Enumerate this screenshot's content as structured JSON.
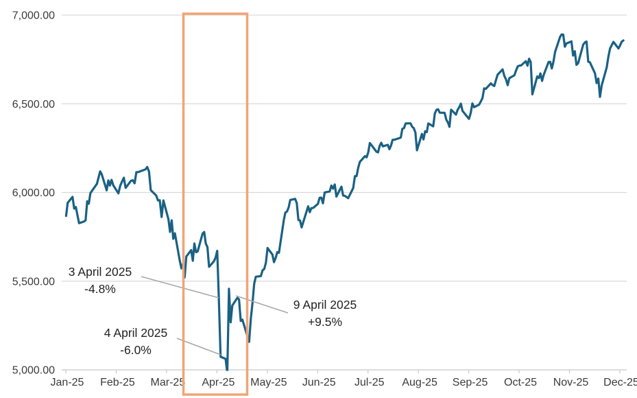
{
  "chart_data": {
    "type": "line",
    "xlabel": "",
    "ylabel": "",
    "ylim": [
      5000,
      7000
    ],
    "grid": "horizontal",
    "legend": "none",
    "y_ticks": [
      {
        "value": 7000,
        "label": "7,000.00"
      },
      {
        "value": 6500,
        "label": "6,500.00"
      },
      {
        "value": 6000,
        "label": "6,000.00"
      },
      {
        "value": 5500,
        "label": "5,500.00"
      },
      {
        "value": 5000,
        "label": "5,000.00"
      }
    ],
    "x_tick_labels": [
      "Jan-25",
      "Feb-25",
      "Mar-25",
      "Apr-25",
      "May-25",
      "Jun-25",
      "Jul-25",
      "Aug-25",
      "Sep-25",
      "Oct-25",
      "Nov-25",
      "Dec-25"
    ],
    "colors": {
      "line": "#1A6184",
      "highlight_box": "#F0A577",
      "gridline": "#D9D9D9",
      "axis": "#C8C8C8",
      "leader": "#A8A8A8",
      "axis_text": "#3A3A3A",
      "annotation_text": "#222222"
    },
    "annotations": [
      {
        "title": "3 April 2025",
        "value": "-4.8%",
        "anchor": [
          4,
          3
        ]
      },
      {
        "title": "4 April 2025",
        "value": "-6.0%",
        "anchor": [
          4,
          4
        ]
      },
      {
        "title": "9 April 2025",
        "value": "+9.5%",
        "anchor": [
          4,
          9
        ]
      }
    ],
    "highlight_box": {
      "color": "#F0A577"
    },
    "points": [
      [
        1,
        2,
        5868
      ],
      [
        1,
        3,
        5942
      ],
      [
        1,
        6,
        5975
      ],
      [
        1,
        7,
        5909
      ],
      [
        1,
        8,
        5918
      ],
      [
        1,
        10,
        5827
      ],
      [
        1,
        13,
        5836
      ],
      [
        1,
        14,
        5843
      ],
      [
        1,
        15,
        5950
      ],
      [
        1,
        16,
        5937
      ],
      [
        1,
        17,
        5997
      ],
      [
        1,
        21,
        6049
      ],
      [
        1,
        22,
        6086
      ],
      [
        1,
        23,
        6119
      ],
      [
        1,
        24,
        6101
      ],
      [
        1,
        27,
        6012
      ],
      [
        1,
        28,
        6068
      ],
      [
        1,
        29,
        6039
      ],
      [
        1,
        30,
        6071
      ],
      [
        1,
        31,
        6041
      ],
      [
        2,
        3,
        5995
      ],
      [
        2,
        4,
        6038
      ],
      [
        2,
        5,
        6061
      ],
      [
        2,
        6,
        6083
      ],
      [
        2,
        7,
        6026
      ],
      [
        2,
        10,
        6066
      ],
      [
        2,
        11,
        6069
      ],
      [
        2,
        12,
        6052
      ],
      [
        2,
        13,
        6115
      ],
      [
        2,
        14,
        6115
      ],
      [
        2,
        18,
        6130
      ],
      [
        2,
        19,
        6144
      ],
      [
        2,
        20,
        6118
      ],
      [
        2,
        21,
        6013
      ],
      [
        2,
        24,
        5983
      ],
      [
        2,
        25,
        5955
      ],
      [
        2,
        26,
        5956
      ],
      [
        2,
        27,
        5862
      ],
      [
        2,
        28,
        5955
      ],
      [
        3,
        3,
        5850
      ],
      [
        3,
        4,
        5778
      ],
      [
        3,
        5,
        5843
      ],
      [
        3,
        6,
        5739
      ],
      [
        3,
        7,
        5770
      ],
      [
        3,
        10,
        5615
      ],
      [
        3,
        11,
        5572
      ],
      [
        3,
        12,
        5599
      ],
      [
        3,
        13,
        5521
      ],
      [
        3,
        14,
        5639
      ],
      [
        3,
        17,
        5675
      ],
      [
        3,
        18,
        5615
      ],
      [
        3,
        19,
        5712
      ],
      [
        3,
        20,
        5663
      ],
      [
        3,
        21,
        5668
      ],
      [
        3,
        24,
        5768
      ],
      [
        3,
        25,
        5777
      ],
      [
        3,
        26,
        5712
      ],
      [
        3,
        27,
        5693
      ],
      [
        3,
        28,
        5581
      ],
      [
        3,
        31,
        5612
      ],
      [
        4,
        1,
        5633
      ],
      [
        4,
        2,
        5671
      ],
      [
        4,
        3,
        5396
      ],
      [
        4,
        4,
        5074
      ],
      [
        4,
        7,
        5062
      ],
      [
        4,
        8,
        4983
      ],
      [
        4,
        9,
        5457
      ],
      [
        4,
        10,
        5268
      ],
      [
        4,
        11,
        5363
      ],
      [
        4,
        14,
        5406
      ],
      [
        4,
        15,
        5397
      ],
      [
        4,
        16,
        5276
      ],
      [
        4,
        17,
        5283
      ],
      [
        4,
        21,
        5158
      ],
      [
        4,
        22,
        5288
      ],
      [
        4,
        23,
        5376
      ],
      [
        4,
        24,
        5485
      ],
      [
        4,
        25,
        5525
      ],
      [
        4,
        28,
        5529
      ],
      [
        4,
        29,
        5561
      ],
      [
        4,
        30,
        5569
      ],
      [
        5,
        1,
        5604
      ],
      [
        5,
        2,
        5687
      ],
      [
        5,
        5,
        5650
      ],
      [
        5,
        6,
        5607
      ],
      [
        5,
        7,
        5631
      ],
      [
        5,
        8,
        5664
      ],
      [
        5,
        9,
        5660
      ],
      [
        5,
        12,
        5844
      ],
      [
        5,
        13,
        5887
      ],
      [
        5,
        14,
        5893
      ],
      [
        5,
        15,
        5916
      ],
      [
        5,
        16,
        5958
      ],
      [
        5,
        19,
        5964
      ],
      [
        5,
        20,
        5941
      ],
      [
        5,
        21,
        5845
      ],
      [
        5,
        22,
        5842
      ],
      [
        5,
        23,
        5803
      ],
      [
        5,
        27,
        5922
      ],
      [
        5,
        28,
        5889
      ],
      [
        5,
        29,
        5912
      ],
      [
        5,
        30,
        5912
      ],
      [
        6,
        2,
        5936
      ],
      [
        6,
        3,
        5970
      ],
      [
        6,
        4,
        5971
      ],
      [
        6,
        5,
        5939
      ],
      [
        6,
        6,
        6000
      ],
      [
        6,
        9,
        6006
      ],
      [
        6,
        10,
        6039
      ],
      [
        6,
        11,
        6022
      ],
      [
        6,
        12,
        6045
      ],
      [
        6,
        13,
        5977
      ],
      [
        6,
        16,
        6033
      ],
      [
        6,
        17,
        5983
      ],
      [
        6,
        18,
        5981
      ],
      [
        6,
        20,
        5968
      ],
      [
        6,
        23,
        6025
      ],
      [
        6,
        24,
        6092
      ],
      [
        6,
        25,
        6092
      ],
      [
        6,
        26,
        6141
      ],
      [
        6,
        27,
        6173
      ],
      [
        6,
        30,
        6205
      ],
      [
        7,
        1,
        6198
      ],
      [
        7,
        2,
        6227
      ],
      [
        7,
        3,
        6279
      ],
      [
        7,
        7,
        6230
      ],
      [
        7,
        8,
        6226
      ],
      [
        7,
        9,
        6263
      ],
      [
        7,
        10,
        6280
      ],
      [
        7,
        11,
        6260
      ],
      [
        7,
        14,
        6269
      ],
      [
        7,
        15,
        6244
      ],
      [
        7,
        16,
        6264
      ],
      [
        7,
        17,
        6297
      ],
      [
        7,
        18,
        6297
      ],
      [
        7,
        21,
        6306
      ],
      [
        7,
        22,
        6310
      ],
      [
        7,
        23,
        6359
      ],
      [
        7,
        24,
        6363
      ],
      [
        7,
        25,
        6389
      ],
      [
        7,
        28,
        6390
      ],
      [
        7,
        29,
        6371
      ],
      [
        7,
        30,
        6363
      ],
      [
        7,
        31,
        6339
      ],
      [
        8,
        1,
        6238
      ],
      [
        8,
        4,
        6330
      ],
      [
        8,
        5,
        6299
      ],
      [
        8,
        6,
        6345
      ],
      [
        8,
        7,
        6340
      ],
      [
        8,
        8,
        6389
      ],
      [
        8,
        11,
        6373
      ],
      [
        8,
        12,
        6446
      ],
      [
        8,
        13,
        6466
      ],
      [
        8,
        14,
        6469
      ],
      [
        8,
        15,
        6450
      ],
      [
        8,
        18,
        6449
      ],
      [
        8,
        19,
        6411
      ],
      [
        8,
        20,
        6395
      ],
      [
        8,
        21,
        6370
      ],
      [
        8,
        22,
        6467
      ],
      [
        8,
        25,
        6439
      ],
      [
        8,
        26,
        6466
      ],
      [
        8,
        27,
        6481
      ],
      [
        8,
        28,
        6501
      ],
      [
        8,
        29,
        6460
      ],
      [
        9,
        2,
        6415
      ],
      [
        9,
        3,
        6448
      ],
      [
        9,
        4,
        6502
      ],
      [
        9,
        5,
        6481
      ],
      [
        9,
        8,
        6495
      ],
      [
        9,
        9,
        6513
      ],
      [
        9,
        10,
        6532
      ],
      [
        9,
        11,
        6587
      ],
      [
        9,
        12,
        6584
      ],
      [
        9,
        15,
        6615
      ],
      [
        9,
        16,
        6606
      ],
      [
        9,
        17,
        6600
      ],
      [
        9,
        18,
        6632
      ],
      [
        9,
        19,
        6664
      ],
      [
        9,
        22,
        6694
      ],
      [
        9,
        23,
        6657
      ],
      [
        9,
        24,
        6638
      ],
      [
        9,
        25,
        6605
      ],
      [
        9,
        26,
        6644
      ],
      [
        9,
        29,
        6661
      ],
      [
        9,
        30,
        6688
      ],
      [
        10,
        1,
        6711
      ],
      [
        10,
        2,
        6715
      ],
      [
        10,
        3,
        6716
      ],
      [
        10,
        6,
        6740
      ],
      [
        10,
        7,
        6715
      ],
      [
        10,
        8,
        6754
      ],
      [
        10,
        9,
        6735
      ],
      [
        10,
        10,
        6553
      ],
      [
        10,
        13,
        6654
      ],
      [
        10,
        14,
        6645
      ],
      [
        10,
        15,
        6671
      ],
      [
        10,
        16,
        6629
      ],
      [
        10,
        17,
        6664
      ],
      [
        10,
        20,
        6736
      ],
      [
        10,
        21,
        6736
      ],
      [
        10,
        22,
        6699
      ],
      [
        10,
        23,
        6738
      ],
      [
        10,
        24,
        6792
      ],
      [
        10,
        27,
        6876
      ],
      [
        10,
        28,
        6891
      ],
      [
        10,
        29,
        6890
      ],
      [
        10,
        30,
        6822
      ],
      [
        10,
        31,
        6840
      ],
      [
        11,
        3,
        6852
      ],
      [
        11,
        4,
        6772
      ],
      [
        11,
        5,
        6796
      ],
      [
        11,
        6,
        6720
      ],
      [
        11,
        7,
        6729
      ],
      [
        11,
        10,
        6833
      ],
      [
        11,
        11,
        6846
      ],
      [
        11,
        12,
        6851
      ],
      [
        11,
        13,
        6737
      ],
      [
        11,
        14,
        6734
      ],
      [
        11,
        17,
        6672
      ],
      [
        11,
        18,
        6617
      ],
      [
        11,
        19,
        6642
      ],
      [
        11,
        20,
        6539
      ],
      [
        11,
        21,
        6603
      ],
      [
        11,
        24,
        6705
      ],
      [
        11,
        25,
        6766
      ],
      [
        11,
        26,
        6812
      ],
      [
        11,
        28,
        6849
      ],
      [
        12,
        1,
        6812
      ],
      [
        12,
        2,
        6829
      ],
      [
        12,
        3,
        6850
      ],
      [
        12,
        4,
        6857
      ]
    ]
  }
}
